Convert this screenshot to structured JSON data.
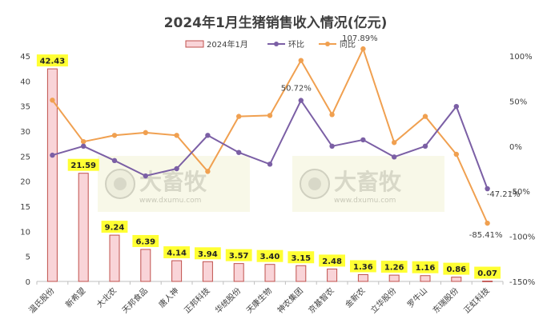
{
  "chart_data": {
    "type": "bar",
    "title": "2024年1月生猪销售收入情况(亿元)",
    "categories": [
      "温氏股份",
      "新希望",
      "大北农",
      "天邦食品",
      "唐人神",
      "正邦科技",
      "华统股份",
      "天康生物",
      "神农集团",
      "京基智农",
      "金新农",
      "立华股份",
      "罗牛山",
      "东瑞股份",
      "正虹科技"
    ],
    "series": [
      {
        "name": "2024年1月",
        "kind": "bar",
        "axis": "left",
        "values": [
          42.43,
          21.59,
          9.24,
          6.39,
          4.14,
          3.94,
          3.57,
          3.4,
          3.15,
          2.48,
          1.36,
          1.26,
          1.16,
          0.86,
          0.07
        ],
        "labels": [
          "42.43",
          "21.59",
          "9.24",
          "6.39",
          "4.14",
          "3.94",
          "3.57",
          "3.40",
          "3.15",
          "2.48",
          "1.36",
          "1.26",
          "1.16",
          "0.86",
          "0.07"
        ]
      },
      {
        "name": "环比",
        "kind": "line",
        "axis": "right",
        "values": [
          -10,
          0,
          -16,
          -33,
          -25,
          12,
          -7,
          -20,
          50.72,
          0,
          7,
          -12,
          0,
          44,
          -47.21
        ]
      },
      {
        "name": "同比",
        "kind": "line",
        "axis": "right",
        "values": [
          51,
          5,
          12,
          15,
          12,
          -28,
          33,
          34,
          95,
          35,
          107.89,
          4,
          33,
          -9,
          -85.41
        ]
      }
    ],
    "line_labels": [
      {
        "series": "环比",
        "index": 8,
        "text": "50.72%"
      },
      {
        "series": "环比",
        "index": 14,
        "text": "-47.21%"
      },
      {
        "series": "同比",
        "index": 10,
        "text": "107.89%"
      },
      {
        "series": "同比",
        "index": 14,
        "text": "-85.41%"
      }
    ],
    "y_left": {
      "min": 0,
      "max": 45,
      "step": 5,
      "ticks": [
        "0",
        "5",
        "10",
        "15",
        "20",
        "25",
        "30",
        "35",
        "40",
        "45"
      ]
    },
    "y_right": {
      "min": -150,
      "max": 100,
      "step": 50,
      "ticks": [
        "-150%",
        "-100%",
        "-50%",
        "0%",
        "50%",
        "100%"
      ]
    },
    "legend_position": "top",
    "grid": false,
    "colors": {
      "bar_fill": "#f9d4d8",
      "bar_stroke": "#c0504d",
      "label_bg": "#ffff33",
      "mom_line": "#7b5fa5",
      "yoy_line": "#f0a050",
      "axis": "#bfbfbf"
    }
  },
  "watermark": {
    "brand": "大畜牧",
    "url": "www.dxumu.com"
  }
}
